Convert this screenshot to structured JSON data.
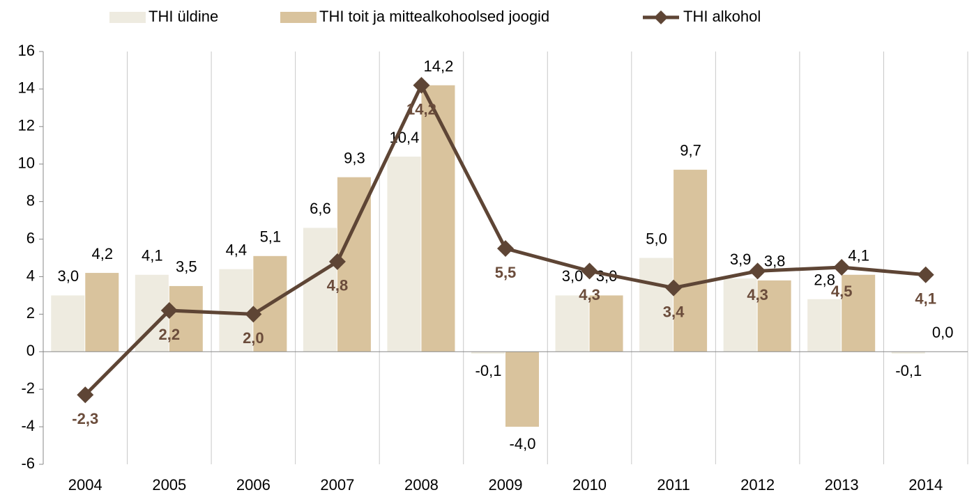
{
  "chart_data": {
    "type": "bar-line",
    "categories": [
      "2004",
      "2005",
      "2006",
      "2007",
      "2008",
      "2009",
      "2010",
      "2011",
      "2012",
      "2013",
      "2014"
    ],
    "series": [
      {
        "name": "THI üldine",
        "type": "bar",
        "color": "#eeebe0",
        "values": [
          3.0,
          4.1,
          4.4,
          6.6,
          10.4,
          -0.1,
          3.0,
          5.0,
          3.9,
          2.8,
          -0.1
        ],
        "value_labels": [
          "3,0",
          "4,1",
          "4,4",
          "6,6",
          "10,4",
          "-0,1",
          "3,0",
          "5,0",
          "3,9",
          "2,8",
          "-0,1"
        ]
      },
      {
        "name": "THI toit ja mittealkohoolsed joogid",
        "type": "bar",
        "color": "#d9c39d",
        "values": [
          4.2,
          3.5,
          5.1,
          9.3,
          14.2,
          -4.0,
          3.0,
          9.7,
          3.8,
          4.1,
          0.0
        ],
        "value_labels": [
          "4,2",
          "3,5",
          "5,1",
          "9,3",
          "14,2",
          "-4,0",
          "3,0",
          "9,7",
          "3,8",
          "4,1",
          "0,0"
        ]
      },
      {
        "name": "THI alkohol",
        "type": "line",
        "color": "#5e4535",
        "values": [
          -2.3,
          2.2,
          2.0,
          4.8,
          14.2,
          5.5,
          4.3,
          3.4,
          4.3,
          4.5,
          4.1
        ],
        "value_labels": [
          "-2,3",
          "2,2",
          "2,0",
          "4,8",
          "14,2",
          "5,5",
          "4,3",
          "3,4",
          "4,3",
          "4,5",
          "4,1"
        ]
      }
    ],
    "ylim": [
      -6,
      16
    ],
    "yticks": [
      -6,
      -4,
      -2,
      0,
      2,
      4,
      6,
      8,
      10,
      12,
      14,
      16
    ],
    "legend": "top"
  }
}
